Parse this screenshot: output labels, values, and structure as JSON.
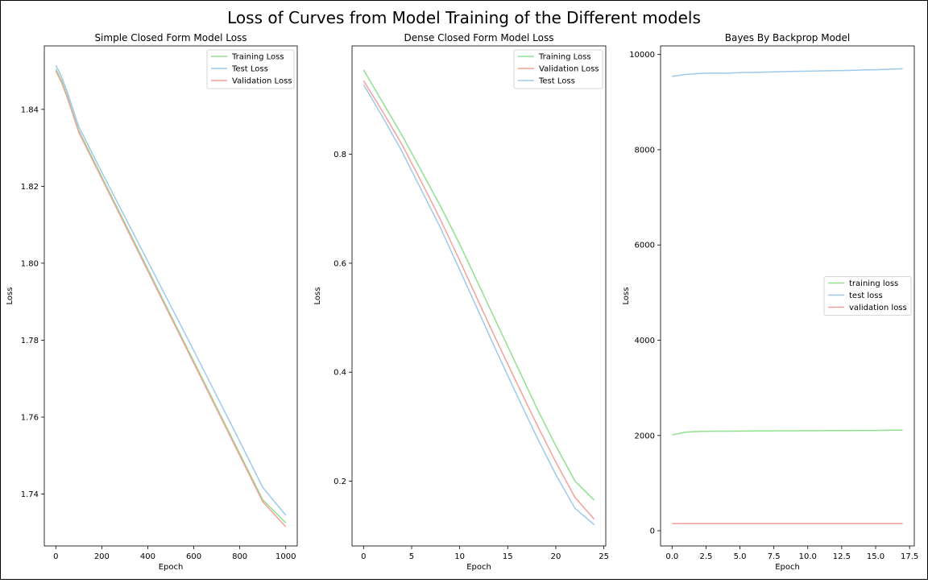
{
  "figure": {
    "title": "Loss of Curves from Model Training of the Different models"
  },
  "colors": {
    "green": "#90e090",
    "blue": "#9ec9ec",
    "red": "#f4a09a",
    "axes": "#000000"
  },
  "chart_data": [
    {
      "type": "line",
      "title": "Simple Closed Form Model Loss",
      "xlabel": "Epoch",
      "ylabel": "Loss",
      "xlim": [
        -50,
        1050
      ],
      "ylim": [
        1.7265,
        1.8565
      ],
      "xticks": [
        0,
        200,
        400,
        600,
        800,
        1000
      ],
      "xtick_labels": [
        "0",
        "200",
        "400",
        "600",
        "800",
        "1000"
      ],
      "yticks": [
        1.74,
        1.76,
        1.78,
        1.8,
        1.82,
        1.84
      ],
      "ytick_labels": [
        "1.74",
        "1.76",
        "1.78",
        "1.80",
        "1.82",
        "1.84"
      ],
      "legend_position": "top-right",
      "grid": false,
      "series": [
        {
          "name": "Training Loss",
          "color": "#90e090",
          "x": [
            0,
            25,
            50,
            100,
            200,
            300,
            400,
            500,
            600,
            700,
            800,
            900,
            1000
          ],
          "y": [
            1.8505,
            1.8475,
            1.8435,
            1.8345,
            1.8225,
            1.8105,
            1.7985,
            1.7865,
            1.7745,
            1.7625,
            1.7505,
            1.7385,
            1.7325
          ]
        },
        {
          "name": "Test Loss",
          "color": "#9ec9ec",
          "x": [
            0,
            25,
            50,
            100,
            200,
            300,
            400,
            500,
            600,
            700,
            800,
            900,
            1000
          ],
          "y": [
            1.8515,
            1.8485,
            1.8445,
            1.8355,
            1.8237,
            1.8121,
            1.8005,
            1.7889,
            1.7773,
            1.7655,
            1.7537,
            1.7417,
            1.7345
          ]
        },
        {
          "name": "Validation Loss",
          "color": "#f4a09a",
          "x": [
            0,
            25,
            50,
            100,
            200,
            300,
            400,
            500,
            600,
            700,
            800,
            900,
            1000
          ],
          "y": [
            1.85,
            1.847,
            1.843,
            1.834,
            1.822,
            1.81,
            1.798,
            1.786,
            1.774,
            1.762,
            1.75,
            1.738,
            1.7315
          ]
        }
      ]
    },
    {
      "type": "line",
      "title": "Dense Closed Form Model Loss",
      "xlabel": "Epoch",
      "ylabel": "Loss",
      "xlim": [
        -1.2,
        25.2
      ],
      "ylim": [
        0.081,
        0.999
      ],
      "xticks": [
        0,
        5,
        10,
        15,
        20,
        25
      ],
      "xtick_labels": [
        "0",
        "5",
        "10",
        "15",
        "20",
        "25"
      ],
      "yticks": [
        0.2,
        0.4,
        0.6,
        0.8
      ],
      "ytick_labels": [
        "0.2",
        "0.4",
        "0.6",
        "0.8"
      ],
      "legend_position": "top-right",
      "grid": false,
      "series": [
        {
          "name": "Training Loss",
          "color": "#90e090",
          "x": [
            0,
            2,
            4,
            6,
            8,
            10,
            12,
            14,
            16,
            18,
            20,
            22,
            24
          ],
          "y": [
            0.955,
            0.895,
            0.835,
            0.77,
            0.705,
            0.635,
            0.56,
            0.485,
            0.41,
            0.335,
            0.265,
            0.2,
            0.165
          ]
        },
        {
          "name": "Validation Loss",
          "color": "#f4a09a",
          "x": [
            0,
            2,
            4,
            6,
            8,
            10,
            12,
            14,
            16,
            18,
            20,
            22,
            24
          ],
          "y": [
            0.935,
            0.878,
            0.818,
            0.75,
            0.68,
            0.605,
            0.528,
            0.452,
            0.378,
            0.305,
            0.235,
            0.17,
            0.13
          ]
        },
        {
          "name": "Test Loss",
          "color": "#9ec9ec",
          "x": [
            0,
            2,
            4,
            6,
            8,
            10,
            12,
            14,
            16,
            18,
            20,
            22,
            24
          ],
          "y": [
            0.928,
            0.868,
            0.805,
            0.735,
            0.665,
            0.588,
            0.51,
            0.432,
            0.356,
            0.282,
            0.212,
            0.15,
            0.12
          ]
        }
      ]
    },
    {
      "type": "line",
      "title": "Bayes By Backprop Model",
      "xlabel": "Epoch",
      "ylabel": "Loss",
      "xlim": [
        -0.85,
        17.85
      ],
      "ylim": [
        -320,
        10180
      ],
      "xticks": [
        0,
        2.5,
        5,
        7.5,
        10,
        12.5,
        15,
        17.5
      ],
      "xtick_labels": [
        "0.0",
        "2.5",
        "5.0",
        "7.5",
        "10.0",
        "12.5",
        "15.0",
        "17.5"
      ],
      "yticks": [
        0,
        2000,
        4000,
        6000,
        8000,
        10000
      ],
      "ytick_labels": [
        "0",
        "2000",
        "4000",
        "6000",
        "8000",
        "10000"
      ],
      "legend_position": "center-right",
      "grid": false,
      "series": [
        {
          "name": "training loss",
          "color": "#90e090",
          "x": [
            0,
            1,
            2,
            3,
            4,
            5,
            6,
            7,
            8,
            9,
            10,
            11,
            12,
            13,
            14,
            15,
            16,
            17
          ],
          "y": [
            2010,
            2070,
            2085,
            2090,
            2090,
            2092,
            2095,
            2095,
            2097,
            2098,
            2100,
            2100,
            2102,
            2103,
            2105,
            2105,
            2110,
            2112
          ]
        },
        {
          "name": "test loss",
          "color": "#9ec9ec",
          "x": [
            0,
            1,
            2,
            3,
            4,
            5,
            6,
            7,
            8,
            9,
            10,
            11,
            12,
            13,
            14,
            15,
            16,
            17
          ],
          "y": [
            9540,
            9580,
            9600,
            9610,
            9605,
            9620,
            9625,
            9630,
            9640,
            9645,
            9650,
            9655,
            9660,
            9665,
            9675,
            9680,
            9690,
            9700
          ]
        },
        {
          "name": "validation loss",
          "color": "#f4a09a",
          "x": [
            0,
            1,
            2,
            3,
            4,
            5,
            6,
            7,
            8,
            9,
            10,
            11,
            12,
            13,
            14,
            15,
            16,
            17
          ],
          "y": [
            150,
            150,
            150,
            150,
            150,
            150,
            150,
            150,
            150,
            150,
            150,
            150,
            150,
            150,
            150,
            150,
            150,
            150
          ]
        }
      ]
    }
  ]
}
